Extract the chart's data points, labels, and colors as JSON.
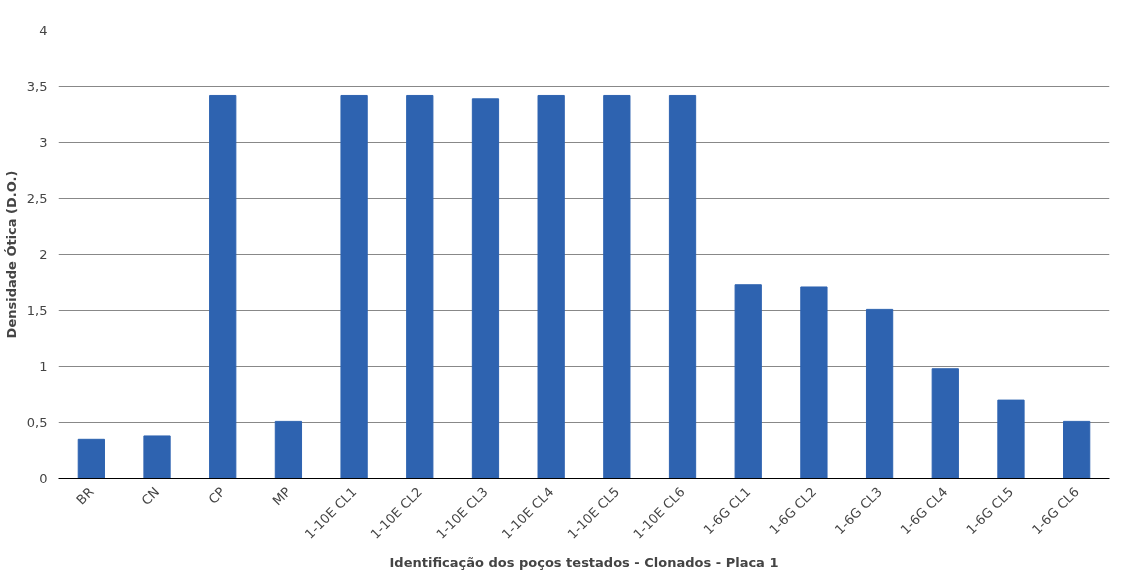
{
  "chart_data": {
    "type": "bar",
    "xlabel": "Identificação dos poços testados - Clonados - Placa 1",
    "ylabel": "Densidade Ótica (D.O.)",
    "categories": [
      "BR",
      "CN",
      "CP",
      "MP",
      "1-10E CL1",
      "1-10E CL2",
      "1-10E CL3",
      "1-10E CL4",
      "1-10E CL5",
      "1-10E CL6",
      "1-6G CL1",
      "1-6G CL2",
      "1-6G CL3",
      "1-6G CL4",
      "1-6G CL5",
      "1-6G CL6"
    ],
    "values": [
      0.35,
      0.38,
      3.42,
      0.51,
      3.42,
      3.42,
      3.39,
      3.42,
      3.42,
      3.42,
      1.73,
      1.71,
      1.51,
      0.98,
      0.7,
      0.51
    ],
    "color": "#2e63b0",
    "ylim": [
      0,
      4
    ],
    "yticks": [
      0,
      {
        "value": 0.5,
        "label": "0,5"
      },
      1,
      {
        "value": 1.5,
        "label": "1,5"
      },
      2,
      {
        "value": 2.5,
        "label": "2,5"
      },
      3,
      {
        "value": 3.5,
        "label": "3,5"
      },
      4
    ],
    "grid": "y"
  }
}
